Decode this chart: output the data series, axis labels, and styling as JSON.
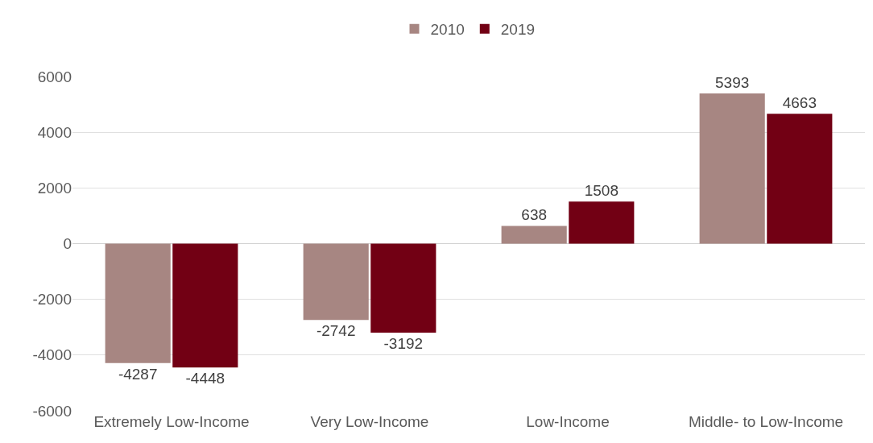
{
  "chart_data": {
    "type": "bar",
    "categories": [
      "Extremely Low-Income",
      "Very Low-Income",
      "Low-Income",
      "Middle- to Low-Income"
    ],
    "series": [
      {
        "name": "2010",
        "color": "#a78682",
        "values": [
          -4287,
          -2742,
          638,
          5393
        ]
      },
      {
        "name": "2019",
        "color": "#720014",
        "values": [
          -4448,
          -3192,
          1508,
          4663
        ]
      }
    ],
    "ylim": [
      -6000,
      6000
    ],
    "yticks": [
      -6000,
      -4000,
      -2000,
      0,
      2000,
      4000,
      6000
    ],
    "grid": "y",
    "legend": "top",
    "data_labels": true
  }
}
